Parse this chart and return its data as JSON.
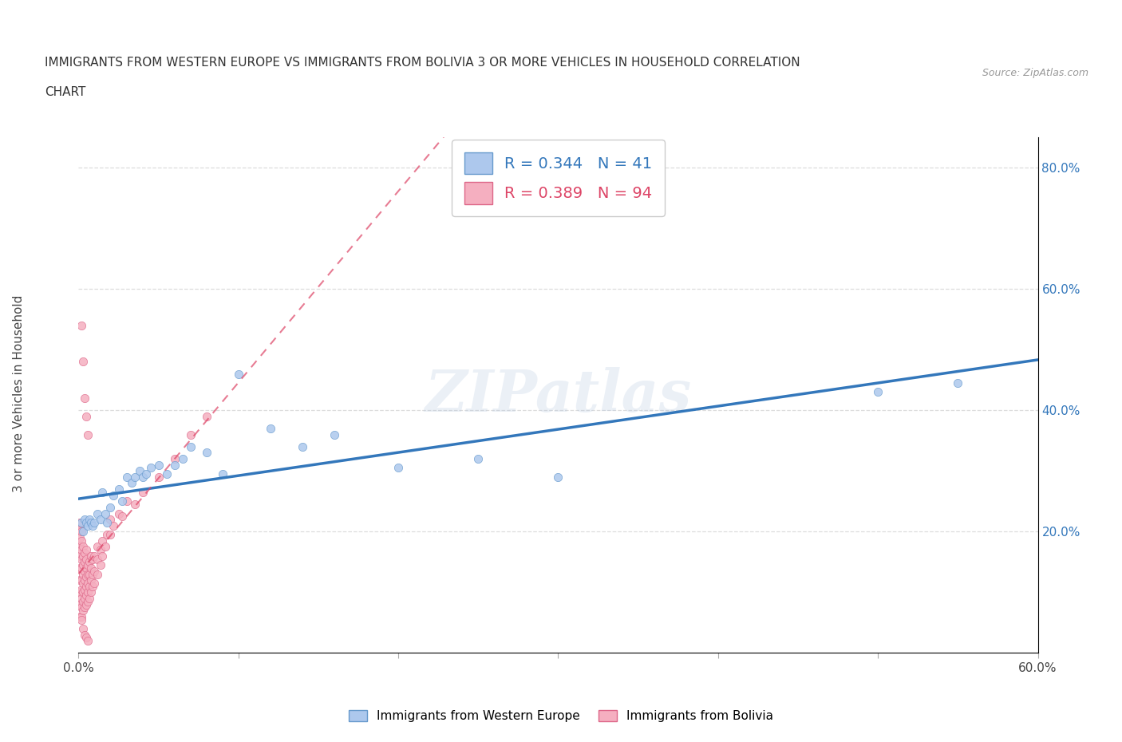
{
  "title_line1": "IMMIGRANTS FROM WESTERN EUROPE VS IMMIGRANTS FROM BOLIVIA 3 OR MORE VEHICLES IN HOUSEHOLD CORRELATION",
  "title_line2": "CHART",
  "source_text": "Source: ZipAtlas.com",
  "ylabel": "3 or more Vehicles in Household",
  "xmin": 0.0,
  "xmax": 0.6,
  "ymin": 0.0,
  "ymax": 0.85,
  "blue_color": "#adc8ed",
  "pink_color": "#f5afc0",
  "blue_edge_color": "#6699cc",
  "pink_edge_color": "#dd6688",
  "blue_line_color": "#3377bb",
  "pink_line_color": "#dd4466",
  "legend_r1": "R = 0.344",
  "legend_n1": "N = 41",
  "legend_r2": "R = 0.389",
  "legend_n2": "N = 94",
  "watermark": "ZIPatlas",
  "legend1_label": "Immigrants from Western Europe",
  "legend2_label": "Immigrants from Bolivia",
  "yticks_right": [
    0.2,
    0.4,
    0.6,
    0.8
  ],
  "ytick_right_labels": [
    "20.0%",
    "40.0%",
    "60.0%",
    "80.0%"
  ],
  "blue_x": [
    0.002,
    0.003,
    0.004,
    0.005,
    0.006,
    0.007,
    0.008,
    0.009,
    0.01,
    0.012,
    0.014,
    0.015,
    0.017,
    0.018,
    0.02,
    0.022,
    0.025,
    0.027,
    0.03,
    0.033,
    0.035,
    0.038,
    0.04,
    0.042,
    0.045,
    0.05,
    0.055,
    0.06,
    0.065,
    0.07,
    0.08,
    0.09,
    0.1,
    0.12,
    0.14,
    0.16,
    0.2,
    0.25,
    0.3,
    0.5,
    0.55
  ],
  "blue_y": [
    0.215,
    0.2,
    0.22,
    0.215,
    0.21,
    0.22,
    0.215,
    0.21,
    0.215,
    0.23,
    0.22,
    0.265,
    0.23,
    0.215,
    0.24,
    0.26,
    0.27,
    0.25,
    0.29,
    0.28,
    0.29,
    0.3,
    0.29,
    0.295,
    0.305,
    0.31,
    0.295,
    0.31,
    0.32,
    0.34,
    0.33,
    0.295,
    0.46,
    0.37,
    0.34,
    0.36,
    0.305,
    0.32,
    0.29,
    0.43,
    0.445
  ],
  "pink_x": [
    0.001,
    0.001,
    0.001,
    0.001,
    0.001,
    0.001,
    0.001,
    0.001,
    0.001,
    0.001,
    0.002,
    0.002,
    0.002,
    0.002,
    0.002,
    0.002,
    0.002,
    0.002,
    0.002,
    0.002,
    0.003,
    0.003,
    0.003,
    0.003,
    0.003,
    0.003,
    0.003,
    0.003,
    0.004,
    0.004,
    0.004,
    0.004,
    0.004,
    0.004,
    0.004,
    0.005,
    0.005,
    0.005,
    0.005,
    0.005,
    0.005,
    0.005,
    0.006,
    0.006,
    0.006,
    0.006,
    0.006,
    0.007,
    0.007,
    0.007,
    0.007,
    0.008,
    0.008,
    0.008,
    0.008,
    0.009,
    0.009,
    0.009,
    0.01,
    0.01,
    0.01,
    0.012,
    0.012,
    0.012,
    0.014,
    0.014,
    0.015,
    0.015,
    0.017,
    0.018,
    0.02,
    0.02,
    0.022,
    0.025,
    0.027,
    0.03,
    0.035,
    0.04,
    0.05,
    0.06,
    0.07,
    0.08,
    0.002,
    0.003,
    0.004,
    0.005,
    0.006,
    0.002,
    0.003,
    0.004,
    0.005,
    0.006
  ],
  "pink_y": [
    0.06,
    0.08,
    0.1,
    0.12,
    0.14,
    0.16,
    0.175,
    0.19,
    0.205,
    0.215,
    0.06,
    0.075,
    0.09,
    0.105,
    0.12,
    0.14,
    0.155,
    0.17,
    0.185,
    0.2,
    0.07,
    0.085,
    0.1,
    0.115,
    0.13,
    0.145,
    0.16,
    0.175,
    0.075,
    0.09,
    0.105,
    0.12,
    0.135,
    0.15,
    0.165,
    0.08,
    0.095,
    0.11,
    0.125,
    0.14,
    0.155,
    0.17,
    0.085,
    0.1,
    0.115,
    0.13,
    0.145,
    0.09,
    0.11,
    0.13,
    0.15,
    0.1,
    0.12,
    0.14,
    0.16,
    0.11,
    0.13,
    0.155,
    0.115,
    0.135,
    0.16,
    0.13,
    0.155,
    0.175,
    0.145,
    0.17,
    0.16,
    0.185,
    0.175,
    0.195,
    0.195,
    0.22,
    0.21,
    0.23,
    0.225,
    0.25,
    0.245,
    0.265,
    0.29,
    0.32,
    0.36,
    0.39,
    0.055,
    0.04,
    0.03,
    0.025,
    0.02,
    0.54,
    0.48,
    0.42,
    0.39,
    0.36
  ]
}
